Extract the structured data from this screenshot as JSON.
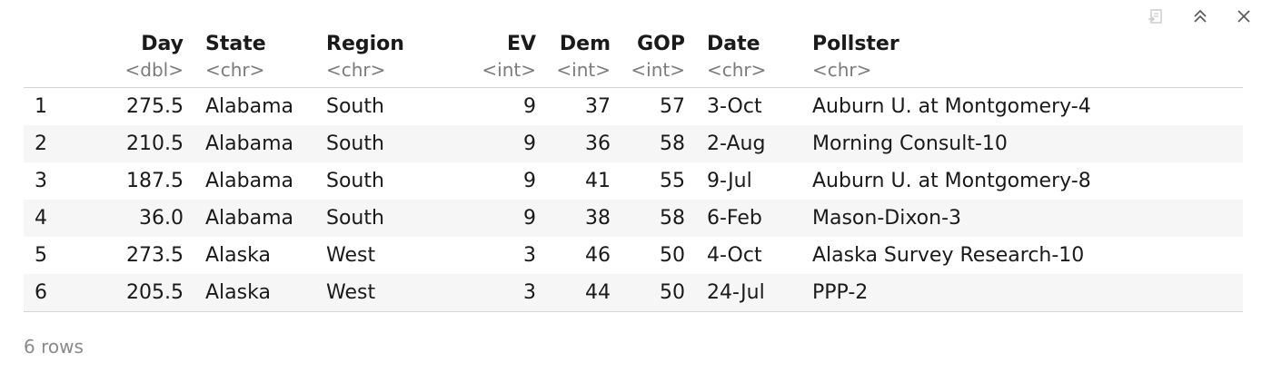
{
  "toolbar": {
    "icons": [
      "export-icon",
      "collapse-icon",
      "close-icon"
    ]
  },
  "table": {
    "columns": [
      {
        "name": "Day",
        "type": "<dbl>"
      },
      {
        "name": "State",
        "type": "<chr>"
      },
      {
        "name": "Region",
        "type": "<chr>"
      },
      {
        "name": "EV",
        "type": "<int>"
      },
      {
        "name": "Dem",
        "type": "<int>"
      },
      {
        "name": "GOP",
        "type": "<int>"
      },
      {
        "name": "Date",
        "type": "<chr>"
      },
      {
        "name": "Pollster",
        "type": "<chr>"
      }
    ],
    "rows": [
      {
        "idx": "1",
        "cells": [
          "275.5",
          "Alabama",
          "South",
          "9",
          "37",
          "57",
          "3-Oct",
          "Auburn U. at Montgomery-4"
        ]
      },
      {
        "idx": "2",
        "cells": [
          "210.5",
          "Alabama",
          "South",
          "9",
          "36",
          "58",
          "2-Aug",
          "Morning Consult-10"
        ]
      },
      {
        "idx": "3",
        "cells": [
          "187.5",
          "Alabama",
          "South",
          "9",
          "41",
          "55",
          "9-Jul",
          "Auburn U. at Montgomery-8"
        ]
      },
      {
        "idx": "4",
        "cells": [
          "36.0",
          "Alabama",
          "South",
          "9",
          "38",
          "58",
          "6-Feb",
          "Mason-Dixon-3"
        ]
      },
      {
        "idx": "5",
        "cells": [
          "273.5",
          "Alaska",
          "West",
          "3",
          "46",
          "50",
          "4-Oct",
          "Alaska Survey Research-10"
        ]
      },
      {
        "idx": "6",
        "cells": [
          "205.5",
          "Alaska",
          "West",
          "3",
          "44",
          "50",
          "24-Jul",
          "PPP-2"
        ]
      }
    ]
  },
  "footer": {
    "row_count": "6 rows"
  }
}
